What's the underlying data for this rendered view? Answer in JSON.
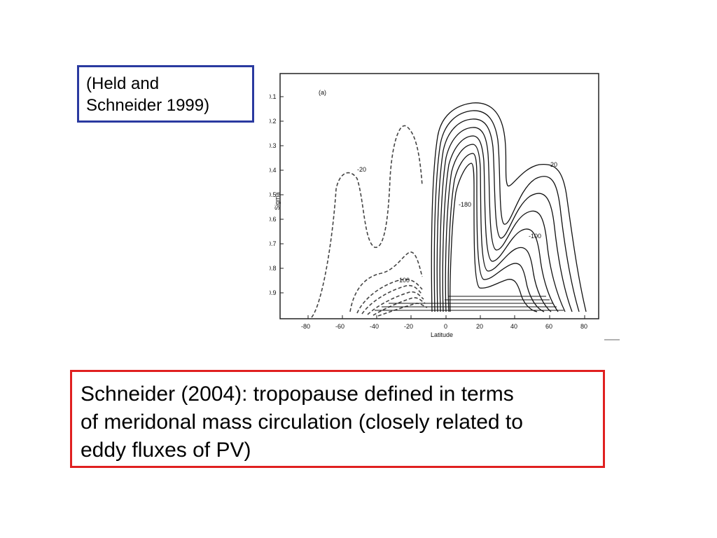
{
  "citation": {
    "line1": "(Held and",
    "line2": "Schneider 1999)"
  },
  "figure": {
    "panel_label": "(a)",
    "ylabel": "Sigma",
    "xlabel": "Latitude",
    "y_ticks": [
      "0.1",
      "0.2",
      "0.3",
      "0.4",
      "0.5",
      "0.6",
      "0.7",
      "0.8",
      "0.9"
    ],
    "x_ticks": [
      "-80",
      "-60",
      "-40",
      "-20",
      "0",
      "20",
      "40",
      "60",
      "80"
    ],
    "contour_labels": [
      "-20",
      "-100",
      "-20",
      "-180",
      "-100"
    ]
  },
  "caption": {
    "line1": "Schneider (2004): tropopause defined in terms",
    "line2": "of meridonal mass circulation (closely related to",
    "line3": "eddy fluxes of PV)"
  },
  "colors": {
    "citation_border": "#2a3aa0",
    "caption_border": "#e02020"
  }
}
